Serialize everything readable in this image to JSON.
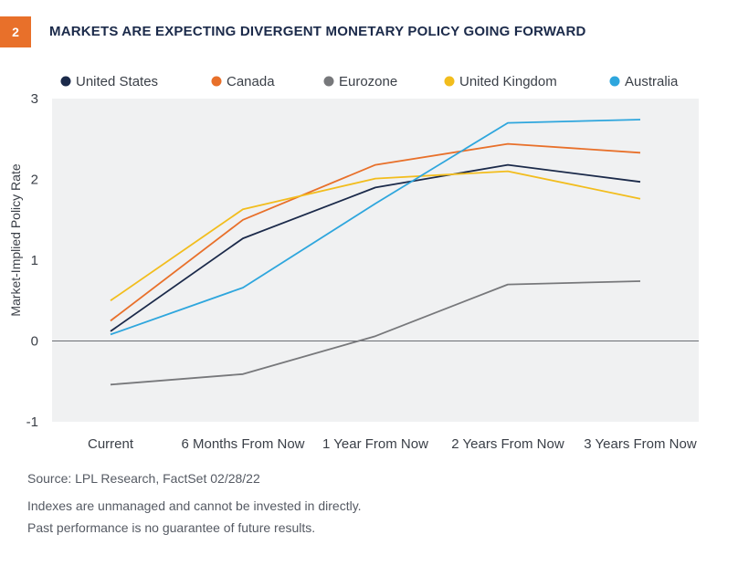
{
  "header": {
    "figure_number": "2",
    "title": "MARKETS ARE EXPECTING DIVERGENT MONETARY POLICY GOING FORWARD"
  },
  "footer": {
    "source": "Source: LPL Research, FactSet  02/28/22",
    "note1": "Indexes are unmanaged and cannot be invested in directly.",
    "note2": "Past performance is no guarantee of future results."
  },
  "chart_data": {
    "type": "line",
    "ylabel": "Market-Implied Policy Rate",
    "ylim": [
      -1,
      3
    ],
    "yticks": [
      -1,
      0,
      1,
      2,
      3
    ],
    "grid": false,
    "legend_position": "top",
    "categories": [
      "Current",
      "6 Months From Now",
      "1 Year From Now",
      "2 Years From Now",
      "3 Years From Now"
    ],
    "series": [
      {
        "name": "United States",
        "color": "#1b2a4a",
        "values": [
          0.12,
          1.27,
          1.9,
          2.18,
          1.97
        ]
      },
      {
        "name": "Canada",
        "color": "#e8702a",
        "values": [
          0.25,
          1.5,
          2.18,
          2.44,
          2.33
        ]
      },
      {
        "name": "Eurozone",
        "color": "#77787b",
        "values": [
          -0.54,
          -0.41,
          0.06,
          0.7,
          0.74
        ]
      },
      {
        "name": "United Kingdom",
        "color": "#f2bd1d",
        "values": [
          0.5,
          1.63,
          2.01,
          2.1,
          1.76
        ]
      },
      {
        "name": "Australia",
        "color": "#2ea6dd",
        "values": [
          0.08,
          0.66,
          1.7,
          2.7,
          2.74
        ]
      }
    ]
  }
}
